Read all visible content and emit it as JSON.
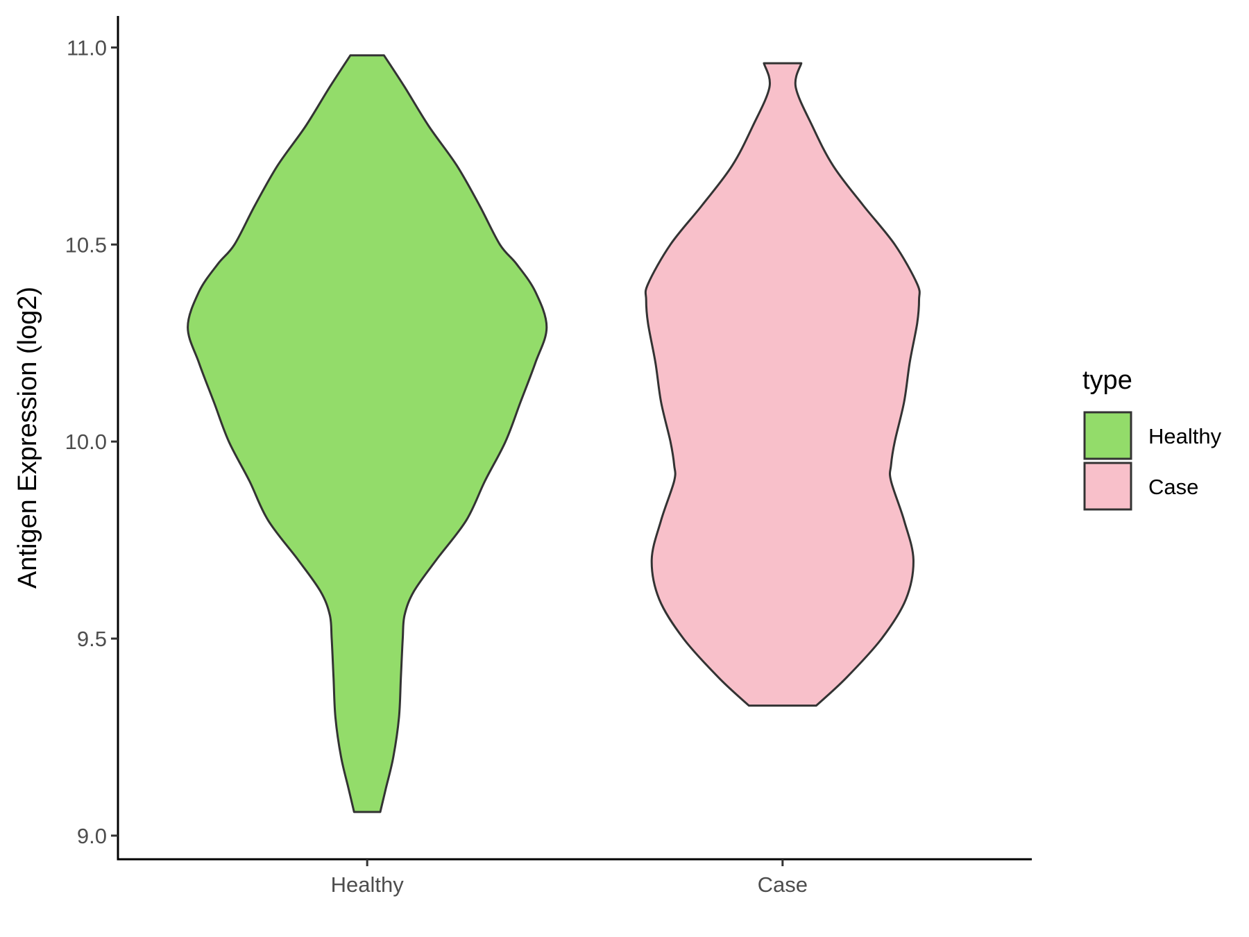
{
  "chart_data": {
    "type": "violin",
    "title": "",
    "xlabel": "",
    "ylabel": "Antigen Expression (log2)",
    "ylim": [
      8.94,
      11.08
    ],
    "yticks": [
      {
        "value": 9.0,
        "label": "9.0"
      },
      {
        "value": 9.5,
        "label": "9.5"
      },
      {
        "value": 10.0,
        "label": "10.0"
      },
      {
        "value": 10.5,
        "label": "10.5"
      },
      {
        "value": 11.0,
        "label": "11.0"
      }
    ],
    "categories": [
      "Healthy",
      "Case"
    ],
    "grid": false,
    "legend": {
      "title": "type",
      "placement": "right",
      "entries": [
        {
          "label": "Healthy",
          "color": "#93dc6a"
        },
        {
          "label": "Case",
          "color": "#f8c0ca"
        }
      ]
    },
    "series": [
      {
        "name": "Healthy",
        "color": "#93dc6a",
        "outline": "#333333",
        "min": 9.06,
        "max": 10.98,
        "density_profile": [
          [
            9.06,
            0.07
          ],
          [
            9.12,
            0.1
          ],
          [
            9.2,
            0.14
          ],
          [
            9.3,
            0.17
          ],
          [
            9.4,
            0.18
          ],
          [
            9.5,
            0.19
          ],
          [
            9.56,
            0.2
          ],
          [
            9.62,
            0.25
          ],
          [
            9.7,
            0.37
          ],
          [
            9.8,
            0.53
          ],
          [
            9.9,
            0.63
          ],
          [
            10.0,
            0.74
          ],
          [
            10.1,
            0.82
          ],
          [
            10.2,
            0.9
          ],
          [
            10.29,
            0.96
          ],
          [
            10.38,
            0.9
          ],
          [
            10.45,
            0.8
          ],
          [
            10.5,
            0.71
          ],
          [
            10.6,
            0.6
          ],
          [
            10.7,
            0.48
          ],
          [
            10.8,
            0.33
          ],
          [
            10.9,
            0.2
          ],
          [
            10.98,
            0.09
          ]
        ]
      },
      {
        "name": "Case",
        "color": "#f8c0ca",
        "outline": "#333333",
        "min": 9.33,
        "max": 10.96,
        "density_profile": [
          [
            9.33,
            0.18
          ],
          [
            9.4,
            0.34
          ],
          [
            9.5,
            0.53
          ],
          [
            9.6,
            0.66
          ],
          [
            9.7,
            0.7
          ],
          [
            9.8,
            0.65
          ],
          [
            9.9,
            0.58
          ],
          [
            9.94,
            0.58
          ],
          [
            10.0,
            0.6
          ],
          [
            10.1,
            0.65
          ],
          [
            10.2,
            0.68
          ],
          [
            10.3,
            0.72
          ],
          [
            10.36,
            0.73
          ],
          [
            10.4,
            0.72
          ],
          [
            10.5,
            0.6
          ],
          [
            10.6,
            0.43
          ],
          [
            10.7,
            0.27
          ],
          [
            10.8,
            0.16
          ],
          [
            10.9,
            0.07
          ],
          [
            10.96,
            0.1
          ]
        ]
      }
    ]
  }
}
